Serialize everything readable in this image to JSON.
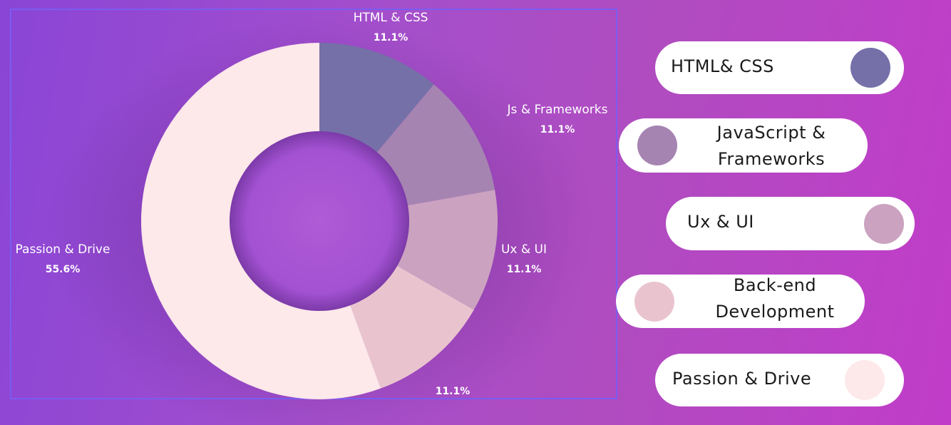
{
  "chart_data": {
    "type": "pie",
    "title": "",
    "slices": [
      {
        "label": "HTML & CSS",
        "value": 11.1,
        "value_label": "11.1%",
        "color": "#7570a8"
      },
      {
        "label": "Js & Frameworks",
        "value": 11.1,
        "value_label": "11.1%",
        "color": "#a684b2"
      },
      {
        "label": "Ux & UI",
        "value": 11.1,
        "value_label": "11.1%",
        "color": "#cba2c0"
      },
      {
        "label": "",
        "value": 11.1,
        "value_label": "11.1%",
        "color": "#e9c4cf"
      },
      {
        "label": "Passion & Drive",
        "value": 55.6,
        "value_label": "55.6%",
        "color": "#fde8ea"
      }
    ]
  },
  "legend": [
    {
      "label_lines": [
        "HTML& CSS"
      ],
      "color": "#7570a8"
    },
    {
      "label_lines": [
        "JavaScript &",
        "Frameworks"
      ],
      "color": "#a684b2"
    },
    {
      "label_lines": [
        "Ux & UI"
      ],
      "color": "#cba2c0"
    },
    {
      "label_lines": [
        "Back-end",
        "Development"
      ],
      "color": "#e9c4cf"
    },
    {
      "label_lines": [
        "Passion & Drive"
      ],
      "color": "#fde8ea"
    }
  ]
}
